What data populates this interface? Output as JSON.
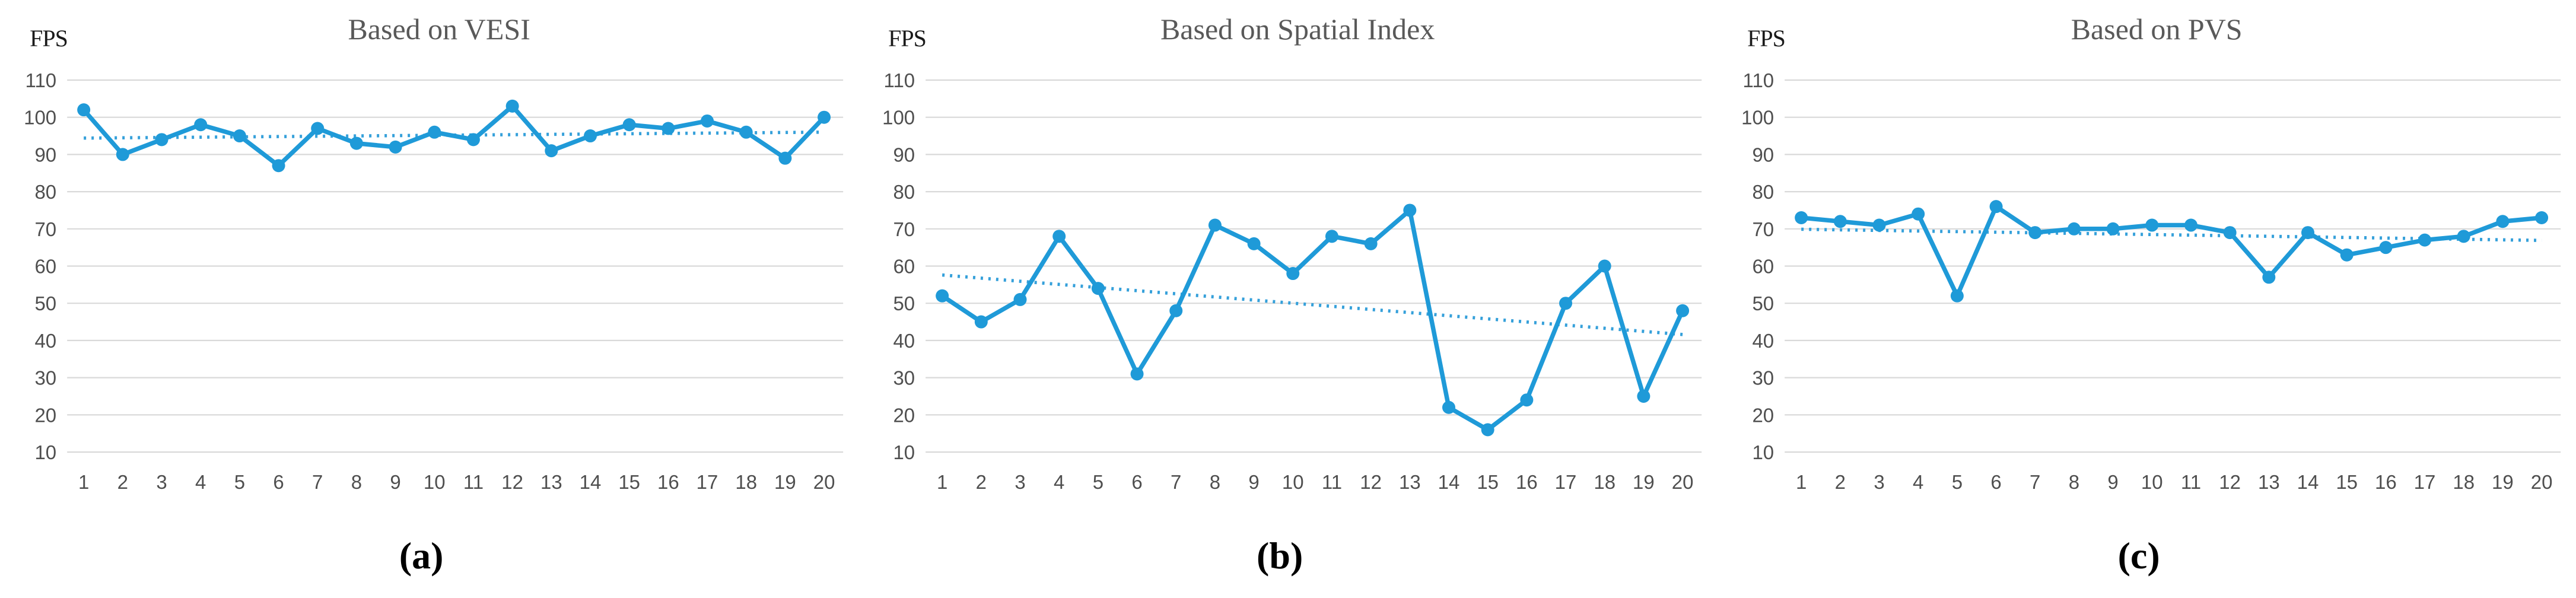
{
  "figure": {
    "background": "#ffffff",
    "description_labels": [
      "FPS",
      "FPS",
      "FPS"
    ]
  },
  "style": {
    "line_color": "#1f9ad8",
    "trend_color": "#35a0da",
    "grid_color": "#d9d9d9",
    "tick_color": "#4f4f4f",
    "title_color": "#595959",
    "ylabel_color": "#1a1a1a",
    "caption_color": "#000000"
  },
  "chart_data": [
    {
      "type": "line",
      "title": "Based on VESI",
      "ylabel": "FPS",
      "xlabel": "",
      "caption": "(a)",
      "grid": true,
      "legend": false,
      "ylim": [
        10,
        110
      ],
      "yticks": [
        10,
        20,
        30,
        40,
        50,
        60,
        70,
        80,
        90,
        100,
        110
      ],
      "x": [
        1,
        2,
        3,
        4,
        5,
        6,
        7,
        8,
        9,
        10,
        11,
        12,
        13,
        14,
        15,
        16,
        17,
        18,
        19,
        20
      ],
      "series": [
        {
          "name": "FPS",
          "marker": "circle",
          "values": [
            102,
            90,
            94,
            98,
            95,
            87,
            97,
            93,
            92,
            96,
            94,
            103,
            91,
            95,
            98,
            97,
            99,
            96,
            89,
            100
          ]
        }
      ],
      "trendline": {
        "type": "linear",
        "style": "dotted",
        "start": 94.4,
        "end": 96.0
      }
    },
    {
      "type": "line",
      "title": "Based on Spatial Index",
      "ylabel": "FPS",
      "xlabel": "",
      "caption": "(b)",
      "grid": true,
      "legend": false,
      "ylim": [
        10,
        110
      ],
      "yticks": [
        10,
        20,
        30,
        40,
        50,
        60,
        70,
        80,
        90,
        100,
        110
      ],
      "x": [
        1,
        2,
        3,
        4,
        5,
        6,
        7,
        8,
        9,
        10,
        11,
        12,
        13,
        14,
        15,
        16,
        17,
        18,
        19,
        20
      ],
      "series": [
        {
          "name": "FPS",
          "marker": "circle",
          "values": [
            52,
            45,
            51,
            68,
            54,
            31,
            48,
            71,
            66,
            58,
            68,
            66,
            75,
            22,
            16,
            24,
            50,
            60,
            25,
            48
          ]
        }
      ],
      "trendline": {
        "type": "linear",
        "style": "dotted",
        "start": 57.6,
        "end": 41.6
      }
    },
    {
      "type": "line",
      "title": "Based on PVS",
      "ylabel": "FPS",
      "xlabel": "",
      "caption": "(c)",
      "grid": true,
      "legend": false,
      "ylim": [
        10,
        110
      ],
      "yticks": [
        10,
        20,
        30,
        40,
        50,
        60,
        70,
        80,
        90,
        100,
        110
      ],
      "x": [
        1,
        2,
        3,
        4,
        5,
        6,
        7,
        8,
        9,
        10,
        11,
        12,
        13,
        14,
        15,
        16,
        17,
        18,
        19,
        20
      ],
      "series": [
        {
          "name": "FPS",
          "marker": "circle",
          "values": [
            73,
            72,
            71,
            74,
            52,
            76,
            69,
            70,
            70,
            71,
            71,
            69,
            57,
            69,
            63,
            65,
            67,
            68,
            72,
            73
          ]
        }
      ],
      "trendline": {
        "type": "linear",
        "style": "dotted",
        "start": 69.9,
        "end": 66.9
      }
    }
  ]
}
